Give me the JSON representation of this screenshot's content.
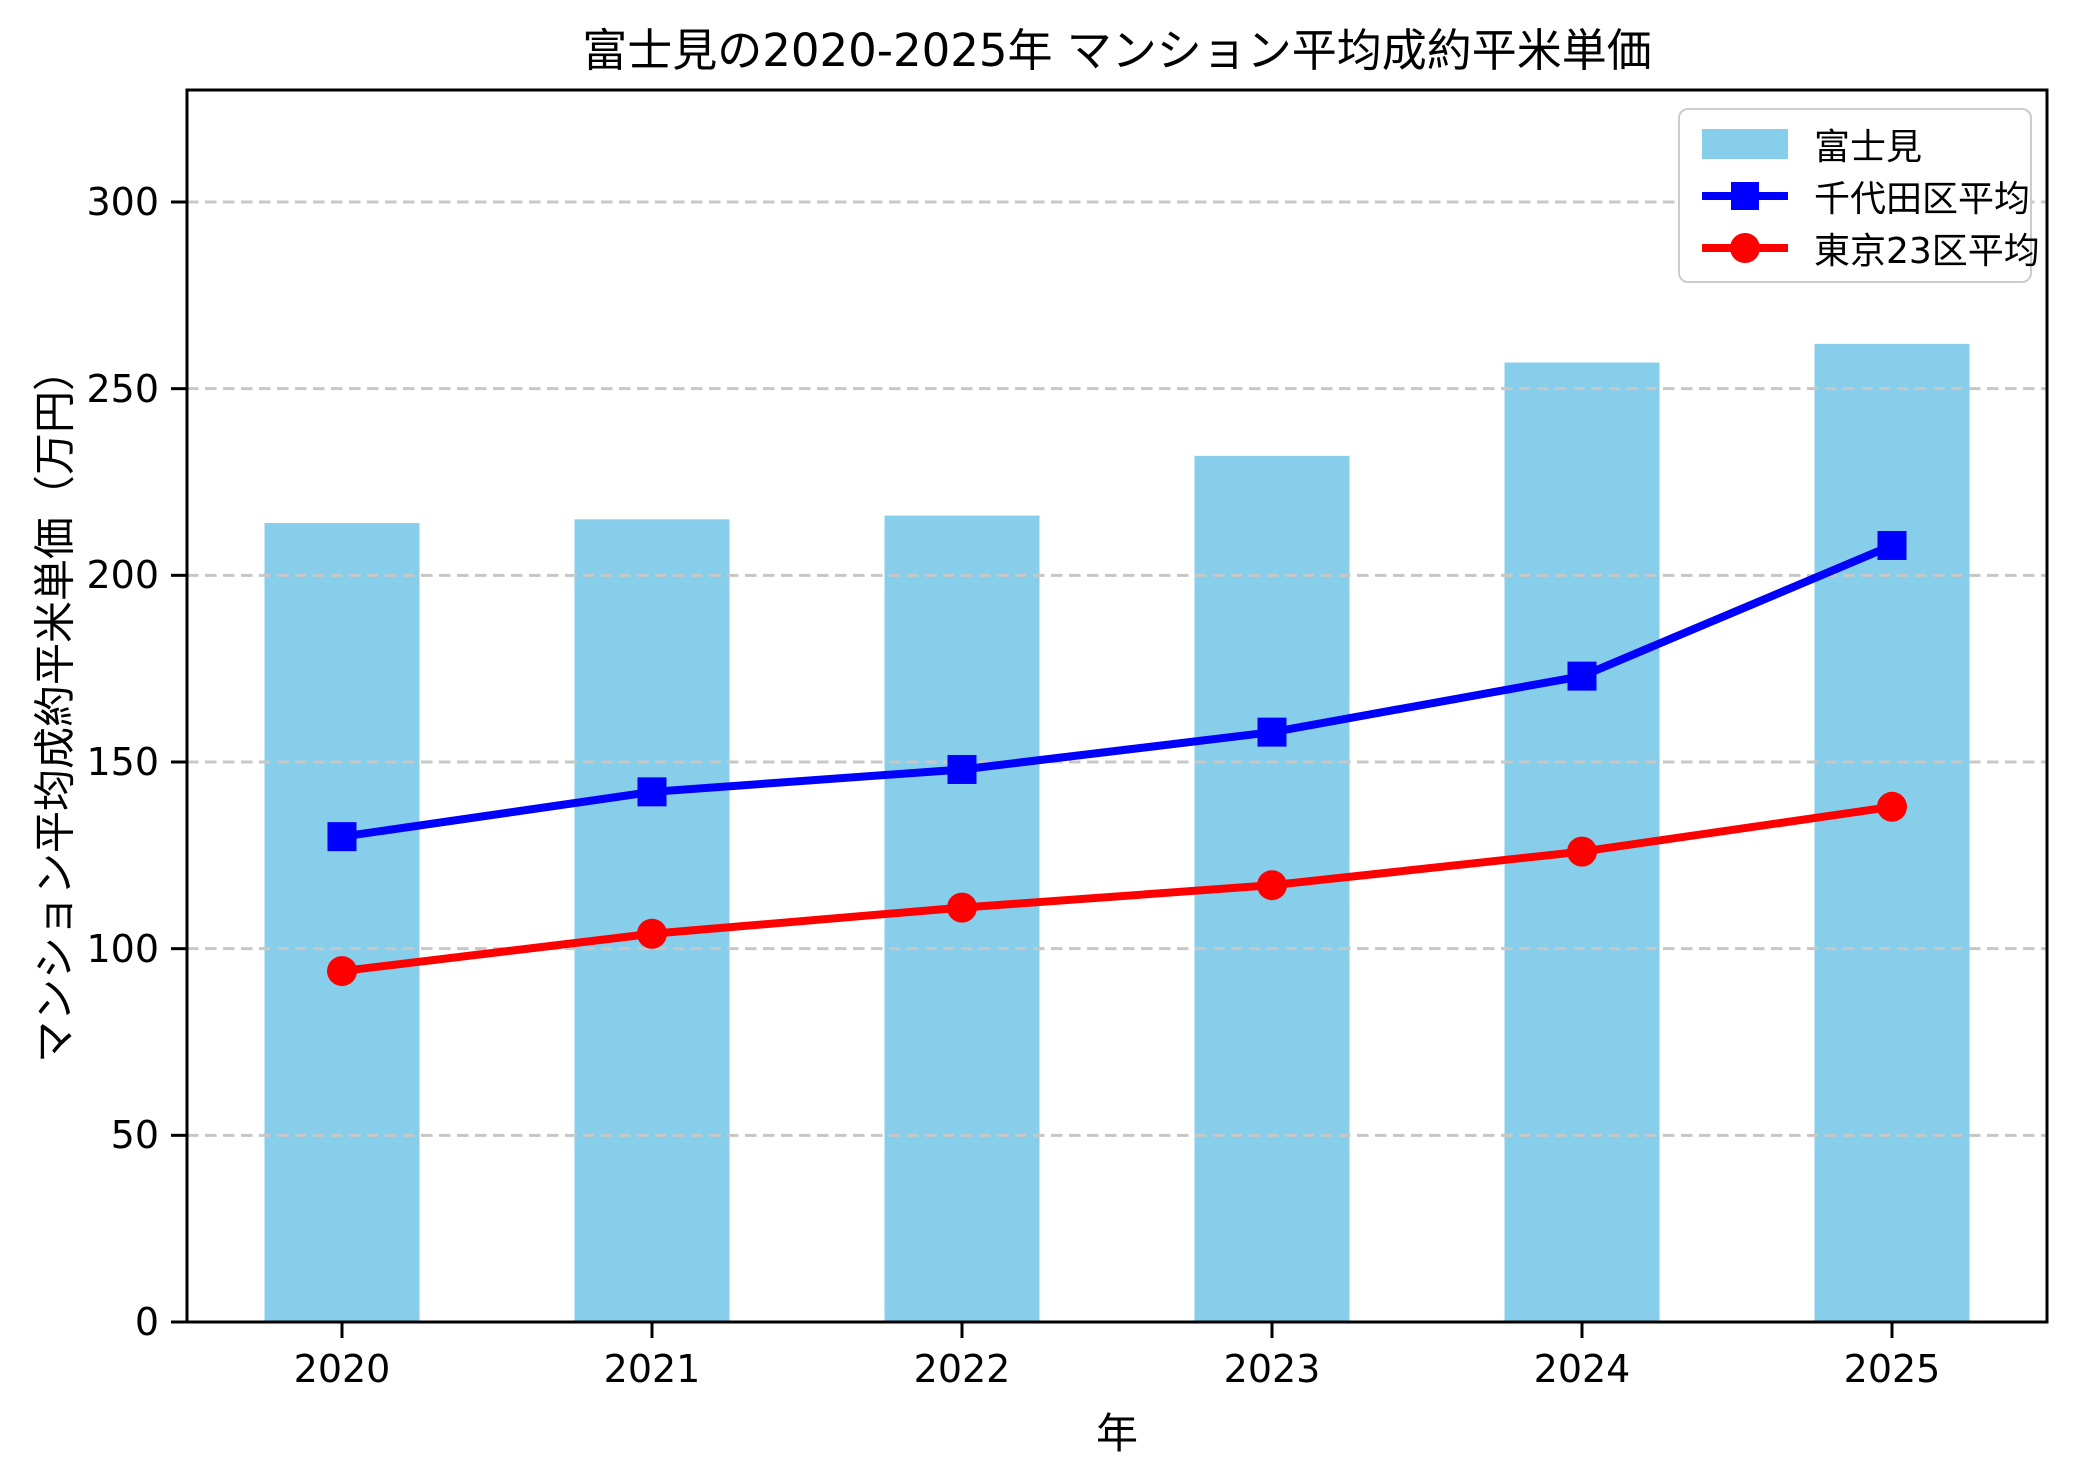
{
  "title": "富士見の2020-2025年 マンション平均成約平米単価",
  "axes": {
    "xlabel": "年",
    "ylabel": "マンション平均成約平米単価（万円）"
  },
  "colors": {
    "bar": "#87CEEB",
    "line1": "#0000FF",
    "line2": "#FF0000",
    "grid": "#c7c7c7",
    "spine": "#000000",
    "legend_border": "#cccccc",
    "background": "#ffffff"
  },
  "chart_data": {
    "type": "bar",
    "title": "富士見の2020-2025年 マンション平均成約平米単価",
    "xlabel": "年",
    "ylabel": "マンション平均成約平米単価（万円）",
    "categories": [
      "2020",
      "2021",
      "2022",
      "2023",
      "2024",
      "2025"
    ],
    "series": [
      {
        "name": "富士見",
        "type": "bar",
        "marker": "none",
        "color": "#87CEEB",
        "values": [
          214,
          215,
          216,
          232,
          257,
          262
        ]
      },
      {
        "name": "千代田区平均",
        "type": "line",
        "marker": "square",
        "color": "#0000FF",
        "values": [
          130,
          142,
          148,
          158,
          173,
          208
        ]
      },
      {
        "name": "東京23区平均",
        "type": "line",
        "marker": "circle",
        "color": "#FF0000",
        "values": [
          94,
          104,
          111,
          117,
          126,
          138
        ]
      }
    ],
    "ylim": [
      0,
      330
    ],
    "yticks": [
      0,
      50,
      100,
      150,
      200,
      250,
      300
    ],
    "grid": true,
    "grid_style": "dashed",
    "legend_position": "upper right",
    "bar_width_fraction": 0.5
  }
}
